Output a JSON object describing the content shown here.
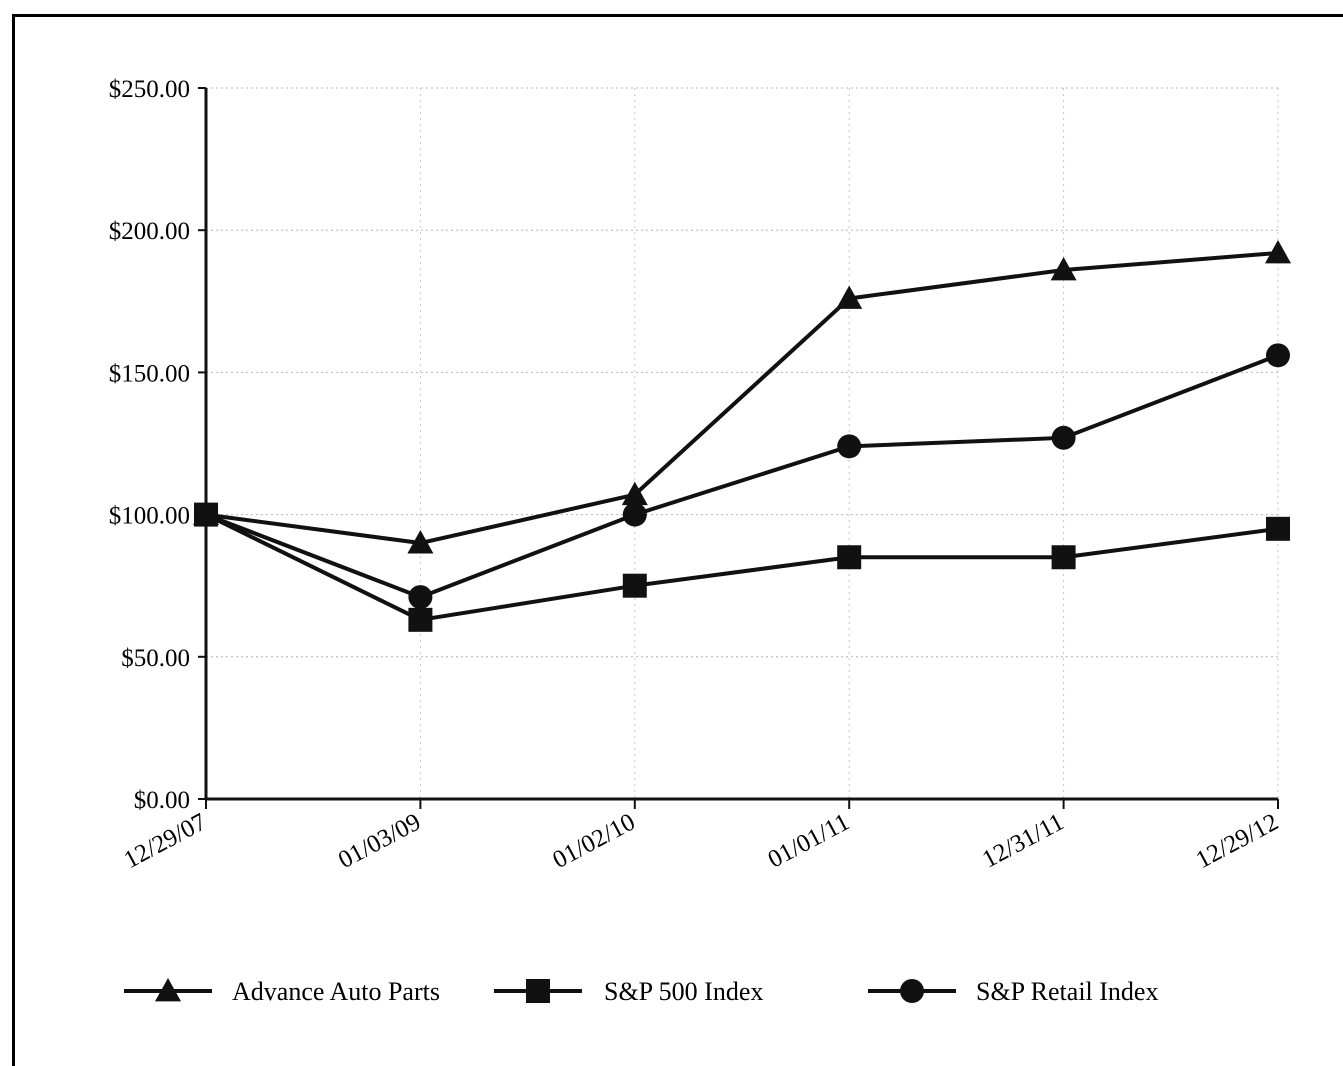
{
  "chart_data": {
    "type": "line",
    "x": [
      "12/29/07",
      "01/03/09",
      "01/02/10",
      "01/01/11",
      "12/31/11",
      "12/29/12"
    ],
    "ylim": [
      0,
      250
    ],
    "yticks": [
      0,
      50,
      100,
      150,
      200,
      250
    ],
    "ytick_labels": [
      "$0.00",
      "$50.00",
      "$100.00",
      "$150.00",
      "$200.00",
      "$250.00"
    ],
    "grid": true,
    "legend_position": "bottom",
    "series": [
      {
        "name": "Advance Auto Parts",
        "marker": "triangle",
        "values": [
          100,
          90,
          107,
          176,
          186,
          192
        ]
      },
      {
        "name": "S&P 500 Index",
        "marker": "square",
        "values": [
          100,
          63,
          75,
          85,
          85,
          95
        ]
      },
      {
        "name": "S&P Retail Index",
        "marker": "circle",
        "values": [
          100,
          71,
          100,
          124,
          127,
          156
        ]
      }
    ],
    "line_color": "#111111"
  }
}
